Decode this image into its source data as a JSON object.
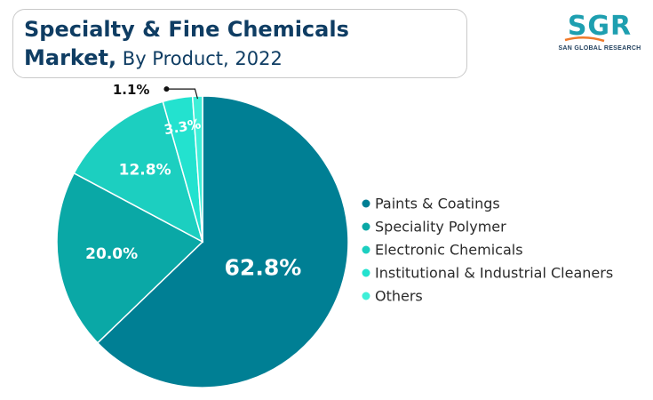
{
  "title": {
    "line1": "Specialty & Fine Chemicals",
    "line2_bold": "Market,",
    "line2_rest": " By Product, 2022"
  },
  "logo": {
    "mark": "SGR",
    "subtitle": "SAN GLOBAL RESEARCH",
    "colors": {
      "mark": "#1e9fb0",
      "accent": "#f07a2a"
    }
  },
  "chart_data": {
    "type": "pie",
    "slices": [
      {
        "name": "Paints & Coatings",
        "value": 62.8,
        "label": "62.8%",
        "color": "#007f94"
      },
      {
        "name": "Speciality Polymer",
        "value": 20.0,
        "label": "20.0%",
        "color": "#0aa8a6"
      },
      {
        "name": "Electronic Chemicals",
        "value": 12.8,
        "label": "12.8%",
        "color": "#1ccfc0"
      },
      {
        "name": "Institutional & Industrial Cleaners",
        "value": 3.3,
        "label": "3.3%",
        "color": "#23e2cf"
      },
      {
        "name": "Others",
        "value": 1.1,
        "label": "1.1%",
        "color": "#3fefd8"
      }
    ],
    "legend_position": "right",
    "start_angle": "top, clockwise"
  }
}
